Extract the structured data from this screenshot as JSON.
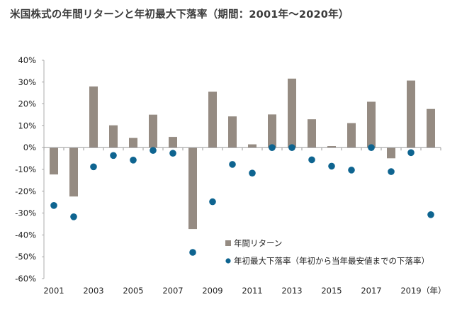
{
  "chart_data": {
    "type": "bar",
    "title": "米国株式の年間リターンと年初最大下落率（期間：2001年～2020年）",
    "unit_label": "（年）",
    "categories": [
      "2001",
      "2002",
      "2003",
      "2004",
      "2005",
      "2006",
      "2007",
      "2008",
      "2009",
      "2010",
      "2011",
      "2012",
      "2013",
      "2014",
      "2015",
      "2016",
      "2017",
      "2018",
      "2019",
      "2020"
    ],
    "x_tick_labels": [
      "2001",
      "2003",
      "2005",
      "2007",
      "2009",
      "2011",
      "2013",
      "2015",
      "2017",
      "2019"
    ],
    "y_tick_labels": [
      "40%",
      "30%",
      "20%",
      "10%",
      "0%",
      "-10%",
      "-20%",
      "-30%",
      "-40%",
      "-50%",
      "-60%"
    ],
    "ylim": [
      -60,
      40
    ],
    "series": [
      {
        "name": "年間リターン",
        "kind": "bar",
        "color": "#958b82",
        "values": [
          -12.3,
          -22.4,
          28.0,
          10.2,
          4.4,
          15.1,
          4.9,
          -37.3,
          25.6,
          14.3,
          1.5,
          15.2,
          31.6,
          13.0,
          0.7,
          11.2,
          21.0,
          -4.9,
          30.7,
          17.7
        ]
      },
      {
        "name": "年初最大下落率（年初から当年最安値までの下落率）",
        "kind": "scatter",
        "color": "#0e6490",
        "values": [
          -26.5,
          -31.7,
          -8.8,
          -3.6,
          -5.7,
          -1.3,
          -2.6,
          -48.0,
          -24.8,
          -7.7,
          -11.7,
          0.0,
          0.0,
          -5.6,
          -8.5,
          -10.3,
          0.0,
          -11.0,
          -2.3,
          -30.7
        ]
      }
    ]
  }
}
